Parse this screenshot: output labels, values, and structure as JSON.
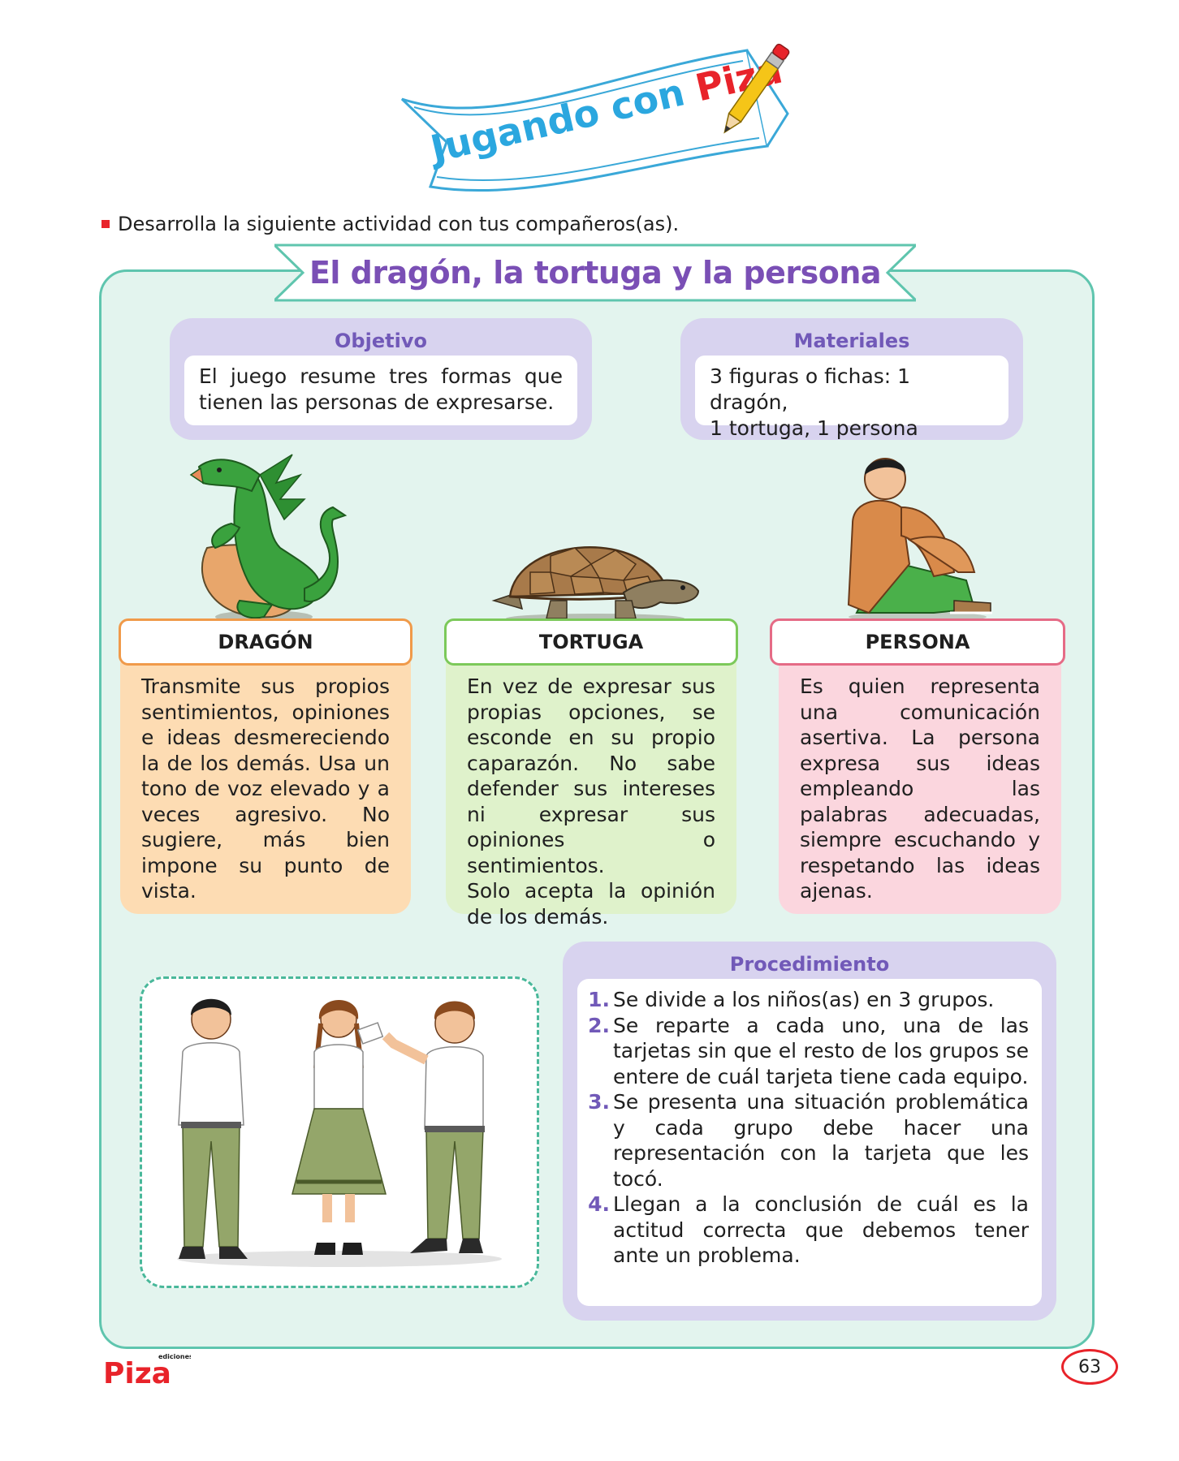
{
  "banner": {
    "prefix": "Jugando con ",
    "brand": "Piza"
  },
  "instruction": "Desarrolla la siguiente actividad con tus compañeros(as).",
  "title": "El dragón, la tortuga y la persona",
  "objetivo": {
    "heading": "Objetivo",
    "text": "El juego resume tres formas que tienen las personas de expresarse."
  },
  "materiales": {
    "heading": "Materiales",
    "line1": "3 figuras o fichas: 1 dragón,",
    "line2": "1 tortuga, 1 persona"
  },
  "cards": [
    {
      "title": "DRAGÓN",
      "text": "Transmite sus propios sentimientos, opiniones e ideas desmereciendo la de los demás. Usa un tono de voz elevado y a veces agresivo. No sugiere, más bien impone su punto de vista."
    },
    {
      "title": "TORTUGA",
      "text": "En vez de expresar sus propias opciones, se esconde en su propio caparazón. No sabe defender sus intereses ni expresar sus opiniones o sentimientos.",
      "text2": "Solo acepta la opinión de los demás."
    },
    {
      "title": "PERSONA",
      "text": "Es quien representa una comunicación asertiva. La persona expresa sus ideas empleando las palabras adecuadas, siempre escuchando y respetando las ideas ajenas."
    }
  ],
  "procedimiento": {
    "heading": "Procedimiento",
    "steps": [
      {
        "num": "1.",
        "text": "Se divide a los niños(as) en 3 grupos."
      },
      {
        "num": "2.",
        "text": "Se reparte a cada uno, una de las tarjetas sin que el resto de los grupos se entere de cuál tarjeta tiene cada equipo."
      },
      {
        "num": "3.",
        "text": "Se presenta una situación problemática y cada grupo debe hacer una representación con la tarjeta que les tocó."
      },
      {
        "num": "4.",
        "text": "Llegan a la conclusión de cuál es la actitud correcta que debemos tener ante un problema."
      }
    ]
  },
  "footer": {
    "logo_small": "ediciones",
    "logo": "Piza",
    "page": "63"
  },
  "colors": {
    "accent": "#7159b8",
    "panel": "#e3f4ee",
    "panel_border": "#5fc5ae",
    "dragon": "#fddcb3",
    "turtle": "#dff2cb",
    "person": "#fbd6de",
    "red": "#e8232a"
  }
}
